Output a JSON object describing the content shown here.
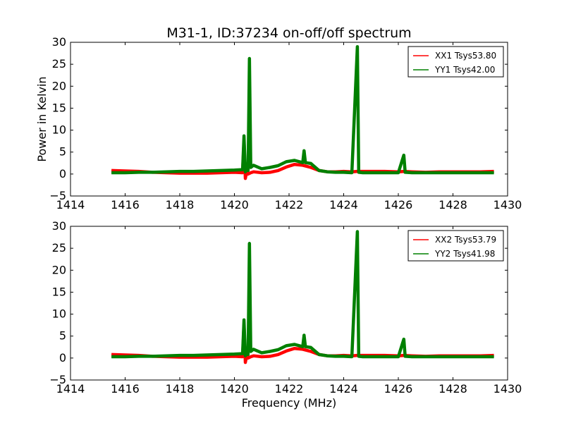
{
  "chart_data": [
    {
      "type": "line",
      "title": "M31-1, ID:37234 on-off/off spectrum",
      "xlabel": "",
      "ylabel": "Power in Kelvin",
      "xlim": [
        1414,
        1430
      ],
      "ylim": [
        -5,
        30
      ],
      "xticks": [
        1414,
        1416,
        1418,
        1420,
        1422,
        1424,
        1426,
        1428,
        1430
      ],
      "yticks": [
        -5,
        0,
        5,
        10,
        15,
        20,
        25,
        30
      ],
      "legend_position": "top-right",
      "series": [
        {
          "name": "XX1 Tsys53.80",
          "color": "#ff0000",
          "x": [
            1415.5,
            1416.0,
            1416.5,
            1417.0,
            1417.5,
            1418.0,
            1418.5,
            1419.0,
            1419.5,
            1420.0,
            1420.3,
            1420.35,
            1420.4,
            1420.45,
            1420.5,
            1420.6,
            1420.7,
            1421.0,
            1421.3,
            1421.6,
            1421.9,
            1422.2,
            1422.5,
            1422.8,
            1423.1,
            1423.4,
            1423.7,
            1424.0,
            1424.3,
            1424.5,
            1424.7,
            1425.0,
            1425.5,
            1426.0,
            1426.2,
            1426.5,
            1427.0,
            1427.5,
            1428.0,
            1428.5,
            1429.0,
            1429.5
          ],
          "values": [
            0.8,
            0.7,
            0.6,
            0.4,
            0.3,
            0.2,
            0.2,
            0.2,
            0.3,
            0.4,
            0.3,
            7.5,
            -1.0,
            0.5,
            0.0,
            0.3,
            0.5,
            0.3,
            0.4,
            0.8,
            1.6,
            2.2,
            2.0,
            1.5,
            0.8,
            0.5,
            0.5,
            0.6,
            0.5,
            0.6,
            0.6,
            0.6,
            0.6,
            0.5,
            0.6,
            0.5,
            0.4,
            0.5,
            0.5,
            0.5,
            0.5,
            0.6
          ]
        },
        {
          "name": "YY1 Tsys42.00",
          "color": "#008000",
          "x": [
            1415.5,
            1416.0,
            1416.5,
            1417.0,
            1417.5,
            1418.0,
            1418.5,
            1419.0,
            1419.5,
            1420.0,
            1420.3,
            1420.35,
            1420.4,
            1420.45,
            1420.5,
            1420.55,
            1420.6,
            1420.7,
            1421.0,
            1421.3,
            1421.6,
            1421.9,
            1422.2,
            1422.5,
            1422.55,
            1422.6,
            1422.8,
            1423.1,
            1423.4,
            1423.7,
            1424.0,
            1424.3,
            1424.5,
            1424.55,
            1424.7,
            1425.0,
            1425.5,
            1426.0,
            1426.2,
            1426.25,
            1426.5,
            1427.0,
            1427.5,
            1428.0,
            1428.5,
            1429.0,
            1429.5
          ],
          "values": [
            0.3,
            0.3,
            0.4,
            0.4,
            0.5,
            0.6,
            0.6,
            0.7,
            0.8,
            0.9,
            1.0,
            8.7,
            0.5,
            1.0,
            0.8,
            26.3,
            1.5,
            2.0,
            1.2,
            1.5,
            1.9,
            2.8,
            3.1,
            2.6,
            5.3,
            2.6,
            2.4,
            0.8,
            0.5,
            0.4,
            0.4,
            0.3,
            29.0,
            0.4,
            0.3,
            0.3,
            0.3,
            0.3,
            4.3,
            0.4,
            0.3,
            0.3,
            0.3,
            0.3,
            0.3,
            0.3,
            0.3
          ]
        }
      ]
    },
    {
      "type": "line",
      "title": "",
      "xlabel": "Frequency (MHz)",
      "ylabel": "",
      "xlim": [
        1414,
        1430
      ],
      "ylim": [
        -5,
        30
      ],
      "xticks": [
        1414,
        1416,
        1418,
        1420,
        1422,
        1424,
        1426,
        1428,
        1430
      ],
      "yticks": [
        -5,
        0,
        5,
        10,
        15,
        20,
        25,
        30
      ],
      "legend_position": "top-right",
      "series": [
        {
          "name": "XX2 Tsys53.79",
          "color": "#ff0000",
          "x": [
            1415.5,
            1416.0,
            1416.5,
            1417.0,
            1417.5,
            1418.0,
            1418.5,
            1419.0,
            1419.5,
            1420.0,
            1420.3,
            1420.35,
            1420.4,
            1420.45,
            1420.5,
            1420.6,
            1420.7,
            1421.0,
            1421.3,
            1421.6,
            1421.9,
            1422.2,
            1422.5,
            1422.8,
            1423.1,
            1423.4,
            1423.7,
            1424.0,
            1424.3,
            1424.5,
            1424.7,
            1425.0,
            1425.5,
            1426.0,
            1426.2,
            1426.5,
            1427.0,
            1427.5,
            1428.0,
            1428.5,
            1429.0,
            1429.5
          ],
          "values": [
            0.8,
            0.7,
            0.6,
            0.4,
            0.3,
            0.2,
            0.2,
            0.2,
            0.3,
            0.4,
            0.3,
            7.5,
            -1.0,
            0.5,
            0.0,
            0.3,
            0.5,
            0.3,
            0.4,
            0.8,
            1.6,
            2.2,
            2.0,
            1.5,
            0.8,
            0.5,
            0.5,
            0.6,
            0.5,
            0.6,
            0.6,
            0.6,
            0.6,
            0.5,
            0.6,
            0.5,
            0.4,
            0.5,
            0.5,
            0.5,
            0.5,
            0.6
          ]
        },
        {
          "name": "YY2 Tsys41.98",
          "color": "#008000",
          "x": [
            1415.5,
            1416.0,
            1416.5,
            1417.0,
            1417.5,
            1418.0,
            1418.5,
            1419.0,
            1419.5,
            1420.0,
            1420.3,
            1420.35,
            1420.4,
            1420.45,
            1420.5,
            1420.55,
            1420.6,
            1420.7,
            1421.0,
            1421.3,
            1421.6,
            1421.9,
            1422.2,
            1422.5,
            1422.55,
            1422.6,
            1422.8,
            1423.1,
            1423.4,
            1423.7,
            1424.0,
            1424.3,
            1424.5,
            1424.55,
            1424.7,
            1425.0,
            1425.5,
            1426.0,
            1426.2,
            1426.25,
            1426.5,
            1427.0,
            1427.5,
            1428.0,
            1428.5,
            1429.0,
            1429.5
          ],
          "values": [
            0.3,
            0.3,
            0.4,
            0.4,
            0.5,
            0.6,
            0.6,
            0.7,
            0.8,
            0.9,
            1.0,
            8.7,
            0.5,
            1.0,
            0.8,
            26.1,
            1.5,
            2.0,
            1.2,
            1.5,
            1.9,
            2.8,
            3.1,
            2.6,
            5.2,
            2.6,
            2.4,
            0.8,
            0.5,
            0.4,
            0.4,
            0.3,
            28.8,
            0.4,
            0.3,
            0.3,
            0.3,
            0.3,
            4.3,
            0.4,
            0.3,
            0.3,
            0.3,
            0.3,
            0.3,
            0.3,
            0.3
          ]
        }
      ]
    }
  ]
}
